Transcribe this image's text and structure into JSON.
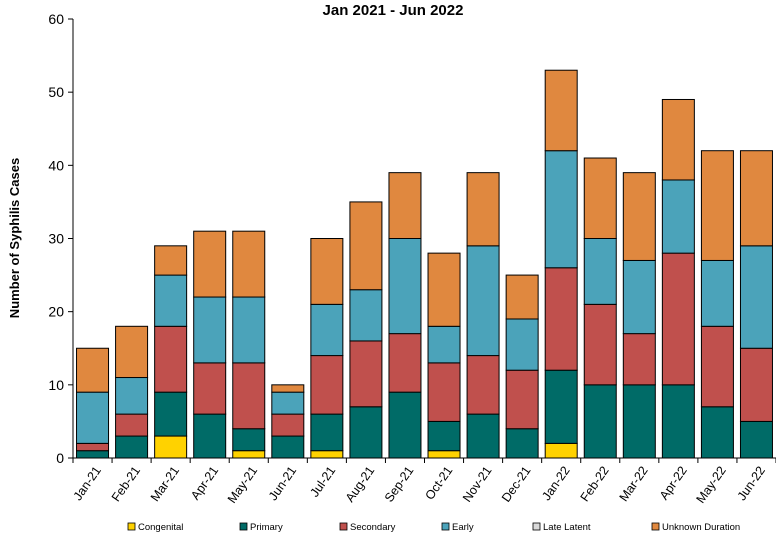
{
  "chart_data": {
    "type": "bar",
    "stacked": true,
    "title": "Jan 2021 - Jun 2022",
    "xlabel": "",
    "ylabel": "Number of Syphilis Cases",
    "ylim": [
      0,
      60
    ],
    "yticks": [
      0,
      10,
      20,
      30,
      40,
      50,
      60
    ],
    "grid": false,
    "legend_position": "bottom",
    "categories": [
      "Jan-21",
      "Feb-21",
      "Mar-21",
      "Apr-21",
      "May-21",
      "Jun-21",
      "Jul-21",
      "Aug-21",
      "Sep-21",
      "Oct-21",
      "Nov-21",
      "Dec-21",
      "Jan-22",
      "Feb-22",
      "Mar-22",
      "Apr-22",
      "May-22",
      "Jun-22"
    ],
    "series": [
      {
        "name": "Congenital",
        "color": "#FFD200",
        "values": [
          0,
          0,
          3,
          0,
          1,
          0,
          1,
          0,
          0,
          1,
          0,
          0,
          2,
          0,
          0,
          0,
          0,
          0
        ]
      },
      {
        "name": "Primary",
        "color": "#006B67",
        "values": [
          1,
          3,
          6,
          6,
          3,
          3,
          5,
          7,
          9,
          4,
          6,
          4,
          10,
          10,
          10,
          10,
          7,
          5
        ]
      },
      {
        "name": "Secondary",
        "color": "#C0504D",
        "values": [
          1,
          3,
          9,
          7,
          9,
          3,
          8,
          9,
          8,
          8,
          8,
          8,
          14,
          11,
          7,
          18,
          11,
          10
        ]
      },
      {
        "name": "Early",
        "color": "#4BA3BA",
        "values": [
          7,
          5,
          7,
          9,
          9,
          3,
          7,
          7,
          13,
          5,
          15,
          7,
          16,
          9,
          10,
          10,
          9,
          14
        ]
      },
      {
        "name": "Late Latent",
        "color": "#D9D9D9",
        "values": [
          0,
          0,
          0,
          0,
          0,
          0,
          0,
          0,
          0,
          0,
          0,
          0,
          0,
          0,
          0,
          0,
          0,
          0
        ]
      },
      {
        "name": "Unknown Duration",
        "color": "#E0883F",
        "values": [
          6,
          7,
          4,
          9,
          9,
          1,
          9,
          12,
          9,
          10,
          10,
          6,
          11,
          11,
          12,
          11,
          15,
          13
        ]
      }
    ]
  }
}
